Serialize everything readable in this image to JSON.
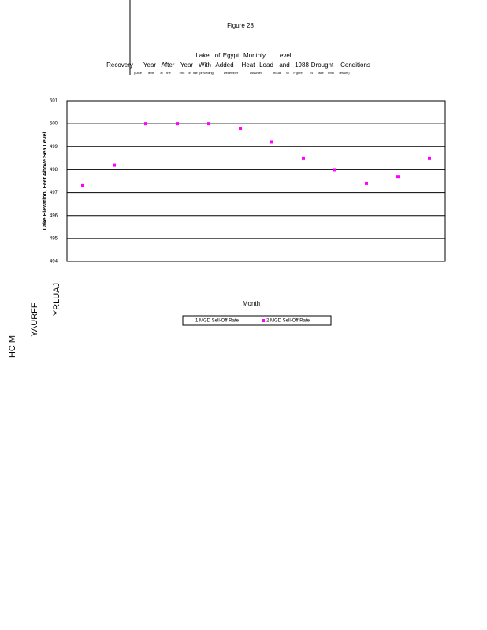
{
  "chart_data": {
    "type": "scatter",
    "title": "Figure 28",
    "heading_upper": [
      "Lake",
      "of",
      "Egypt",
      "Monthly",
      "Level"
    ],
    "heading_lower": [
      "Recovery",
      "Year",
      "After",
      "Year",
      "With",
      "Added",
      "Heat",
      "Load",
      "and",
      "1988",
      "Drought",
      "Conditions"
    ],
    "heading_note": [
      "(Lake",
      "level",
      "at",
      "the",
      "end",
      "of",
      "the",
      "preceding",
      "December",
      "assumed",
      "equal",
      "to",
      "Figure",
      "24",
      "lake",
      "level",
      "results)"
    ],
    "y_label": "Lake Elevation, Feet Above Sea Level",
    "x_label": "Month",
    "side_texts": [
      "YRLUAJ",
      "YAURFF",
      "HC M"
    ],
    "categories": [
      null,
      null,
      null,
      null,
      null,
      null,
      null,
      null,
      null,
      null,
      null,
      null
    ],
    "series": [
      {
        "name": "1 MGD Sell-Off Rate",
        "color": "#000080",
        "values": [
          null,
          null,
          null,
          null,
          null,
          null,
          null,
          null,
          null,
          null,
          null,
          null
        ]
      },
      {
        "name": "2 MGD Sell-Off Rate",
        "color": "#ff00ff",
        "values": [
          497.3,
          498.2,
          500.0,
          500.0,
          500.0,
          499.8,
          499.2,
          498.5,
          498.0,
          497.4,
          497.7,
          498.5
        ]
      }
    ],
    "ylim": [
      494,
      501
    ],
    "yticks": [
      494,
      495,
      496,
      497,
      498,
      499,
      500,
      501
    ],
    "grid": true,
    "legend": "bottom"
  }
}
